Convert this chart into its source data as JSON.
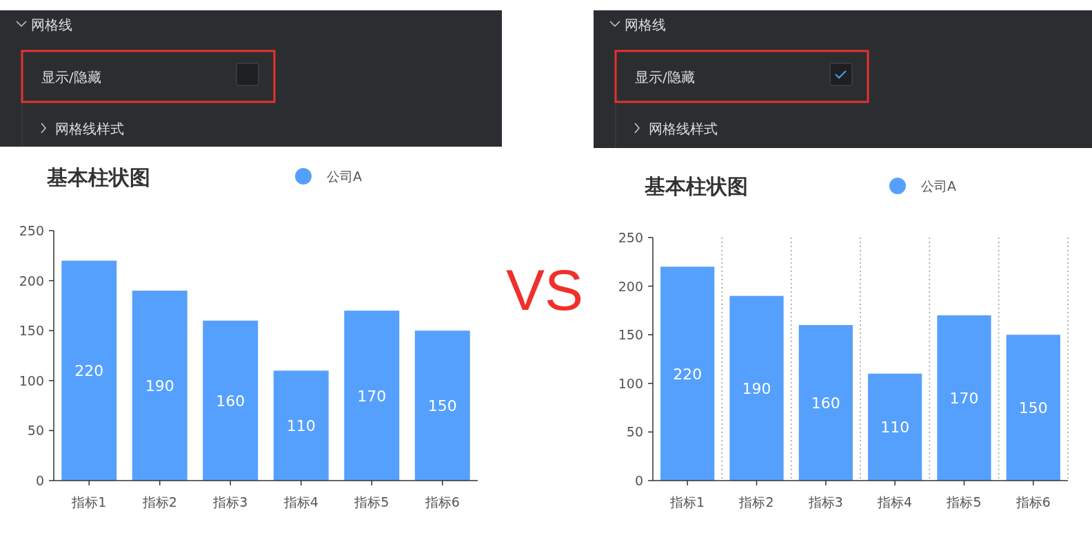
{
  "chart_data": [
    {
      "type": "other",
      "title": "网格线",
      "annotations": [
        "显示/隐藏",
        "网格线样式"
      ]
    },
    {
      "type": "bar",
      "title": "基本柱状图",
      "categories": [
        "指标1",
        "指标2",
        "指标3",
        "指标4",
        "指标5",
        "指标6"
      ],
      "series": [
        {
          "name": "公司A",
          "color": "#56a0fd",
          "values": [
            220,
            190,
            160,
            110,
            170,
            150
          ]
        }
      ],
      "ylim": [
        0,
        250
      ],
      "yticks": [
        0,
        50,
        100,
        150,
        200,
        250
      ],
      "legend": "top",
      "data_labels": true
    },
    {
      "type": "other",
      "title": "网格线",
      "annotations": [
        "显示/隐藏",
        "网格线样式"
      ]
    },
    {
      "type": "bar",
      "title": "基本柱状图",
      "categories": [
        "指标1",
        "指标2",
        "指标3",
        "指标4",
        "指标5",
        "指标6"
      ],
      "series": [
        {
          "name": "公司A",
          "color": "#56a0fd",
          "values": [
            220,
            190,
            160,
            110,
            170,
            150
          ]
        }
      ],
      "ylim": [
        0,
        250
      ],
      "yticks": [
        0,
        50,
        100,
        150,
        200,
        250
      ],
      "grid": "x",
      "legend": "top",
      "data_labels": true,
      "annotations": [
        "VS"
      ]
    }
  ]
}
